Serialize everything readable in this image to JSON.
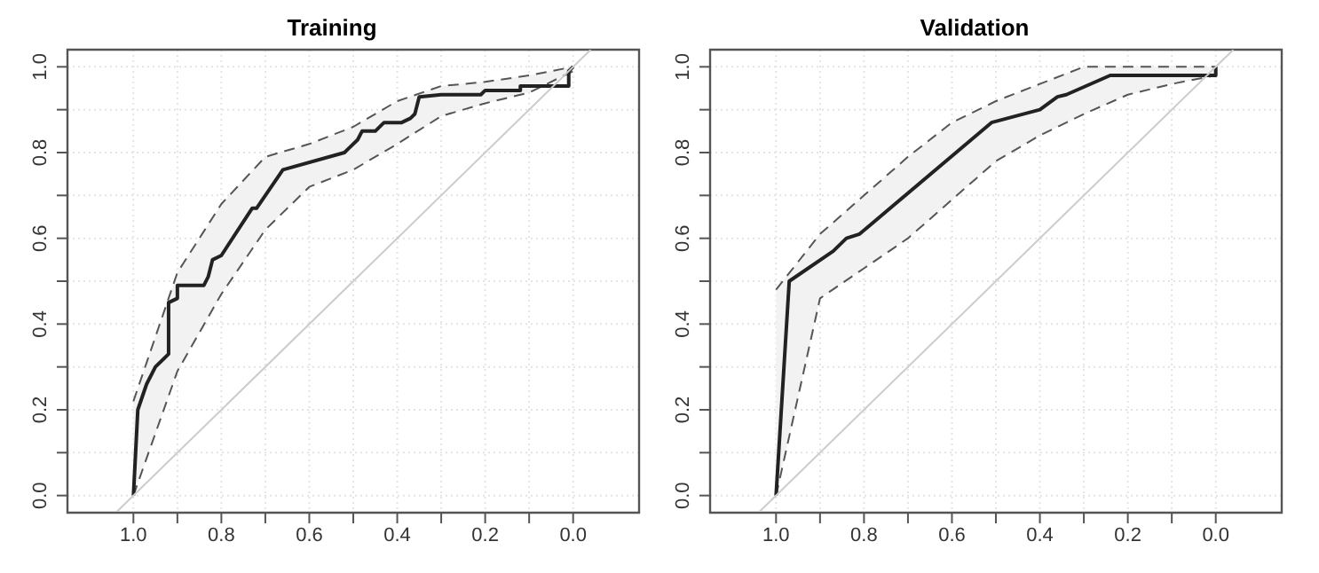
{
  "chart_data": [
    {
      "type": "line",
      "title": "Training",
      "xlim": [
        1.15,
        -0.15
      ],
      "ylim": [
        -0.04,
        1.04
      ],
      "xticks": [
        {
          "value": 1,
          "label": "1.0"
        },
        {
          "value": 0.9,
          "label": null
        },
        0.8,
        {
          "value": 0.7,
          "label": null
        },
        0.6,
        {
          "value": 0.5,
          "label": null
        },
        0.4,
        {
          "value": 0.3,
          "label": null
        },
        0.2,
        {
          "value": 0.1,
          "label": null
        },
        {
          "value": 0,
          "label": "0.0"
        }
      ],
      "yticks": [
        {
          "value": 0,
          "label": "0.0"
        },
        {
          "value": 0.1,
          "label": null
        },
        0.2,
        {
          "value": 0.3,
          "label": null
        },
        0.4,
        {
          "value": 0.5,
          "label": null
        },
        0.6,
        {
          "value": 0.7,
          "label": null
        },
        0.8,
        {
          "value": 0.9,
          "label": null
        },
        {
          "value": 1,
          "label": "1.0"
        }
      ],
      "grid": true,
      "legend": false,
      "series": [
        {
          "color": "#555555",
          "line_style": "dashed",
          "x": [
            1,
            0.9,
            0.8,
            0.7,
            0.6,
            0.5,
            0.4,
            0.3,
            0.2,
            0.1,
            0
          ],
          "values": [
            0,
            0.29,
            0.47,
            0.62,
            0.72,
            0.76,
            0.82,
            0.885,
            0.915,
            0.94,
            0.99
          ]
        },
        {
          "color": "#555555",
          "line_style": "dashed",
          "x": [
            1,
            0.9,
            0.8,
            0.7,
            0.6,
            0.5,
            0.4,
            0.3,
            0.2,
            0.1,
            0
          ],
          "values": [
            0.22,
            0.52,
            0.68,
            0.79,
            0.82,
            0.86,
            0.92,
            0.955,
            0.965,
            0.98,
            1
          ]
        },
        {
          "color": "#222222",
          "x": [
            1,
            0.99,
            0.97,
            0.95,
            0.93,
            0.92,
            0.92,
            0.9,
            0.9,
            0.84,
            0.83,
            0.82,
            0.8,
            0.73,
            0.72,
            0.66,
            0.52,
            0.51,
            0.49,
            0.48,
            0.45,
            0.43,
            0.39,
            0.37,
            0.36,
            0.35,
            0.3,
            0.21,
            0.2,
            0.12,
            0.12,
            0.01,
            0.01,
            0
          ],
          "values": [
            0,
            0.2,
            0.26,
            0.3,
            0.32,
            0.33,
            0.45,
            0.46,
            0.49,
            0.49,
            0.51,
            0.55,
            0.56,
            0.67,
            0.67,
            0.76,
            0.8,
            0.81,
            0.83,
            0.85,
            0.85,
            0.87,
            0.87,
            0.88,
            0.89,
            0.93,
            0.935,
            0.935,
            0.945,
            0.945,
            0.955,
            0.955,
            0.99,
            1
          ]
        },
        {
          "color": "#cccccc",
          "x": [
            1.04,
            -0.04
          ],
          "values": [
            -0.04,
            1.04
          ]
        }
      ]
    },
    {
      "type": "line",
      "title": "Validation",
      "xlim": [
        1.15,
        -0.15
      ],
      "ylim": [
        -0.04,
        1.04
      ],
      "xticks": [
        {
          "value": 1,
          "label": "1.0"
        },
        {
          "value": 0.9,
          "label": null
        },
        0.8,
        {
          "value": 0.7,
          "label": null
        },
        0.6,
        {
          "value": 0.5,
          "label": null
        },
        0.4,
        {
          "value": 0.3,
          "label": null
        },
        0.2,
        {
          "value": 0.1,
          "label": null
        },
        {
          "value": 0,
          "label": "0.0"
        }
      ],
      "yticks": [
        {
          "value": 0,
          "label": "0.0"
        },
        {
          "value": 0.1,
          "label": null
        },
        0.2,
        {
          "value": 0.3,
          "label": null
        },
        0.4,
        {
          "value": 0.5,
          "label": null
        },
        0.6,
        {
          "value": 0.7,
          "label": null
        },
        0.8,
        {
          "value": 0.9,
          "label": null
        },
        {
          "value": 1,
          "label": "1.0"
        }
      ],
      "grid": true,
      "legend": false,
      "series": [
        {
          "color": "#555555",
          "line_style": "dashed",
          "x": [
            1,
            0.9,
            0.8,
            0.7,
            0.6,
            0.5,
            0.4,
            0.3,
            0.2,
            0.1,
            0
          ],
          "values": [
            0,
            0.46,
            0.53,
            0.6,
            0.69,
            0.78,
            0.84,
            0.89,
            0.935,
            0.96,
            0.98
          ]
        },
        {
          "color": "#555555",
          "line_style": "dashed",
          "x": [
            1,
            0.9,
            0.8,
            0.7,
            0.6,
            0.5,
            0.4,
            0.3,
            0.2,
            0.1,
            0
          ],
          "values": [
            0.48,
            0.61,
            0.7,
            0.79,
            0.87,
            0.92,
            0.96,
            1,
            1,
            1,
            1
          ]
        },
        {
          "color": "#222222",
          "x": [
            1,
            0.97,
            0.87,
            0.84,
            0.81,
            0.51,
            0.4,
            0.36,
            0.34,
            0.24,
            0,
            0
          ],
          "values": [
            0,
            0.5,
            0.57,
            0.6,
            0.61,
            0.87,
            0.9,
            0.93,
            0.935,
            0.98,
            0.98,
            1
          ]
        },
        {
          "color": "#cccccc",
          "x": [
            1.04,
            -0.04
          ],
          "values": [
            -0.04,
            1.04
          ]
        }
      ]
    }
  ]
}
